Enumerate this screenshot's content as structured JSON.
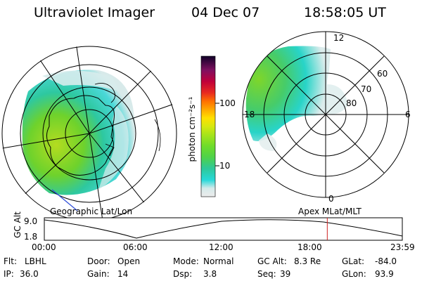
{
  "header": {
    "title": "Ultraviolet Imager",
    "date": "04 Dec 07",
    "time": "18:58:05 UT"
  },
  "colorbar": {
    "label": "photon cm⁻²s⁻¹",
    "ticks": [
      "100",
      "10"
    ],
    "scale": "log",
    "marked_values": [
      100,
      10
    ],
    "colors": [
      "#e8e8e8",
      "#26d8d8",
      "#2ec89a",
      "#6edc2a",
      "#c8e610",
      "#ffe000",
      "#ff8c00",
      "#e02020",
      "#b80048",
      "#7a1060",
      "#200030"
    ]
  },
  "left_map": {
    "caption": "Geographic Lat/Lon"
  },
  "right_map": {
    "caption": "Apex MLat/MLT",
    "mlt_labels": {
      "top": "12",
      "left": "18",
      "right": "6",
      "bottom": "0"
    },
    "lat_labels": [
      "60",
      "70",
      "80"
    ]
  },
  "timeline": {
    "ylabel": "GC Alt",
    "y_ticks": [
      "9.0",
      "1.8"
    ],
    "y_range": [
      1.8,
      9.0
    ],
    "x_ticks": [
      "00:00",
      "06:00",
      "12:00",
      "18:00",
      "23:59"
    ],
    "current_hour": 18.97,
    "marker_color": "#d02020"
  },
  "info": {
    "flt_label": "Flt:",
    "flt_value": "LBHL",
    "door_label": "Door:",
    "door_value": "Open",
    "mode_label": "Mode:",
    "mode_value": "Normal",
    "gcalt_label": "GC Alt:",
    "gcalt_value": "8.3 Re",
    "glat_label": "GLat:",
    "glat_value": "-84.0",
    "ip_label": "IP:",
    "ip_value": "36.0",
    "gain_label": "Gain:",
    "gain_value": "14",
    "dsp_label": "Dsp:",
    "dsp_value": "3.8",
    "seq_label": "Seq:",
    "seq_value": "39",
    "glon_label": "GLon:",
    "glon_value": "93.9"
  }
}
